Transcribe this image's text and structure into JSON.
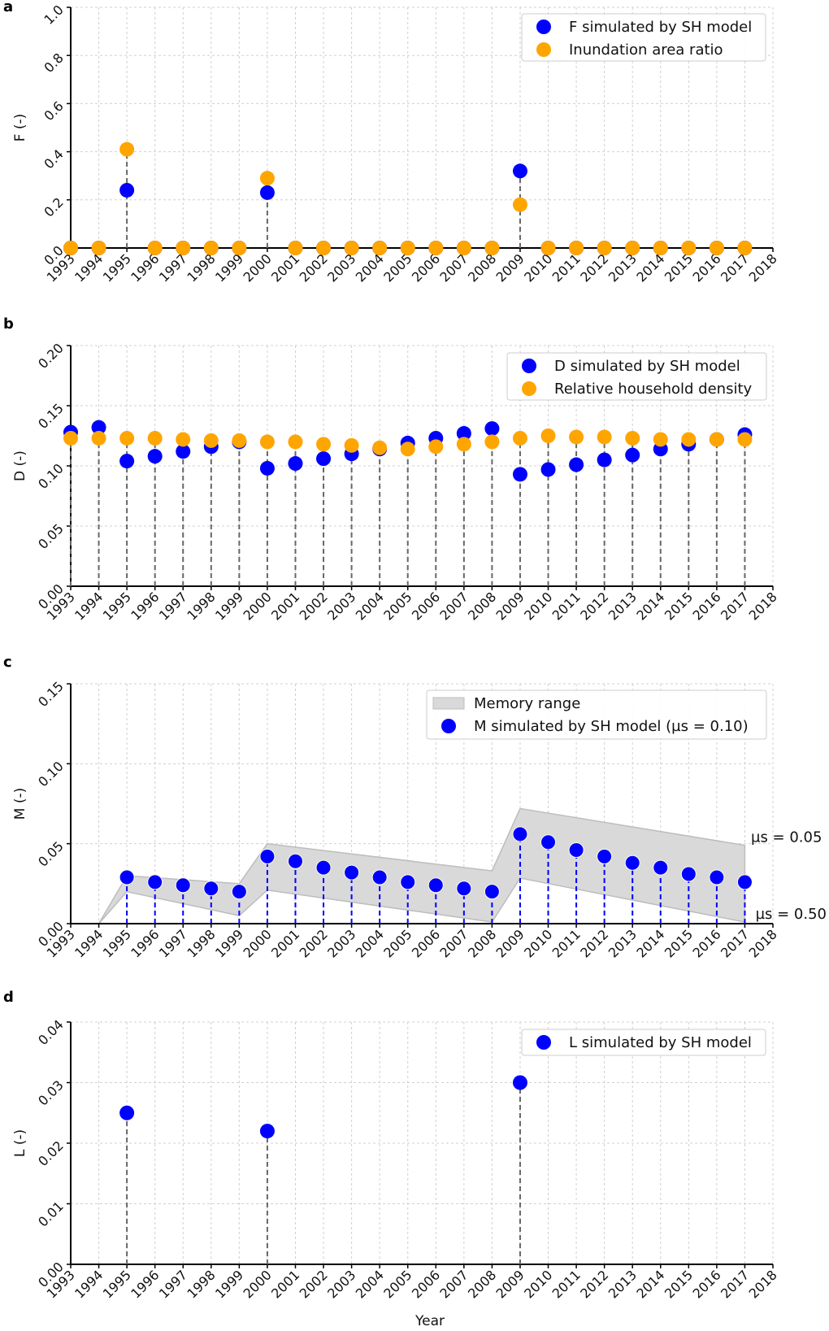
{
  "chart_data": [
    {
      "panel": "a",
      "type": "scatter",
      "ylabel": "F (-)",
      "xlabel": "",
      "ylim": [
        0,
        1.0
      ],
      "yticks": [
        "0.0",
        "0.2",
        "0.4",
        "0.6",
        "0.8",
        "1.0"
      ],
      "ytick_values": [
        0,
        0.2,
        0.4,
        0.6,
        0.8,
        1.0
      ],
      "grid": true,
      "legend_placement": "top-right",
      "x": [
        1993,
        1994,
        1995,
        1996,
        1997,
        1998,
        1999,
        2000,
        2001,
        2002,
        2003,
        2004,
        2005,
        2006,
        2007,
        2008,
        2009,
        2010,
        2011,
        2012,
        2013,
        2014,
        2015,
        2016,
        2017
      ],
      "series": [
        {
          "name": "F simulated by SH model",
          "color": "#0000ff",
          "values": [
            0,
            0,
            0.24,
            0,
            0,
            0,
            0,
            0.23,
            0,
            0,
            0,
            0,
            0,
            0,
            0,
            0,
            0.32,
            0,
            0,
            0,
            0,
            0,
            0,
            0,
            0
          ]
        },
        {
          "name": "Inundation area ratio",
          "color": "#ffa500",
          "values": [
            0,
            0,
            0.41,
            0,
            0,
            0,
            0,
            0.29,
            0,
            0,
            0,
            0,
            0,
            0,
            0,
            0,
            0.18,
            0,
            0,
            0,
            0,
            0,
            0,
            0,
            0
          ]
        }
      ]
    },
    {
      "panel": "b",
      "type": "scatter",
      "ylabel": "D (-)",
      "xlabel": "",
      "ylim": [
        0,
        0.2
      ],
      "yticks": [
        "0.00",
        "0.05",
        "0.10",
        "0.15",
        "0.20"
      ],
      "ytick_values": [
        0,
        0.05,
        0.1,
        0.15,
        0.2
      ],
      "grid": true,
      "legend_placement": "top-right",
      "x": [
        1993,
        1994,
        1995,
        1996,
        1997,
        1998,
        1999,
        2000,
        2001,
        2002,
        2003,
        2004,
        2005,
        2006,
        2007,
        2008,
        2009,
        2010,
        2011,
        2012,
        2013,
        2014,
        2015,
        2016,
        2017
      ],
      "series": [
        {
          "name": "D simulated by SH model",
          "color": "#0000ff",
          "values": [
            0.128,
            0.132,
            0.104,
            0.108,
            0.112,
            0.116,
            0.12,
            0.098,
            0.102,
            0.106,
            0.11,
            0.114,
            0.119,
            0.123,
            0.127,
            0.131,
            0.093,
            0.097,
            0.101,
            0.105,
            0.109,
            0.114,
            0.118,
            0.122,
            0.126
          ]
        },
        {
          "name": "Relative household density",
          "color": "#ffa500",
          "values": [
            0.123,
            0.123,
            0.123,
            0.123,
            0.122,
            0.121,
            0.121,
            0.12,
            0.12,
            0.118,
            0.117,
            0.115,
            0.114,
            0.116,
            0.118,
            0.12,
            0.123,
            0.125,
            0.124,
            0.124,
            0.123,
            0.122,
            0.122,
            0.122,
            0.122
          ]
        }
      ]
    },
    {
      "panel": "c",
      "type": "scatter",
      "ylabel": "M (-)",
      "xlabel": "",
      "ylim": [
        0,
        0.15
      ],
      "yticks": [
        "0.00",
        "0.05",
        "0.10",
        "0.15"
      ],
      "ytick_values": [
        0,
        0.05,
        0.1,
        0.15
      ],
      "grid": true,
      "legend_placement": "top-right",
      "x": [
        1995,
        1996,
        1997,
        1998,
        1999,
        2000,
        2001,
        2002,
        2003,
        2004,
        2005,
        2006,
        2007,
        2008,
        2009,
        2010,
        2011,
        2012,
        2013,
        2014,
        2015,
        2016,
        2017
      ],
      "series": [
        {
          "name": "M simulated by SH model (µs = 0.10)",
          "color": "#0000ff",
          "values": [
            0.029,
            0.026,
            0.024,
            0.022,
            0.02,
            0.042,
            0.039,
            0.035,
            0.032,
            0.029,
            0.026,
            0.024,
            0.022,
            0.02,
            0.056,
            0.051,
            0.046,
            0.042,
            0.038,
            0.035,
            0.031,
            0.029,
            0.026
          ]
        }
      ],
      "band": {
        "name": "Memory range",
        "color": "#d9d9d9",
        "x": [
          1994,
          1995,
          1999,
          2000,
          2008,
          2009,
          2017
        ],
        "upper": [
          0,
          0.03,
          0.025,
          0.05,
          0.033,
          0.072,
          0.049
        ],
        "lower": [
          0,
          0.02,
          0.005,
          0.021,
          0.001,
          0.0285,
          0.001
        ]
      },
      "annotations": [
        "µs = 0.05",
        "µs = 0.50"
      ]
    },
    {
      "panel": "d",
      "type": "scatter",
      "ylabel": "L (-)",
      "xlabel": "Year",
      "ylim": [
        0,
        0.04
      ],
      "yticks": [
        "0.00",
        "0.01",
        "0.02",
        "0.03",
        "0.04"
      ],
      "ytick_values": [
        0,
        0.01,
        0.02,
        0.03,
        0.04
      ],
      "grid": true,
      "legend_placement": "top-right",
      "x": [
        1995,
        2000,
        2009
      ],
      "series": [
        {
          "name": "L simulated by SH model",
          "color": "#0000ff",
          "values": [
            0.025,
            0.022,
            0.03
          ]
        }
      ]
    }
  ],
  "xtick_labels": [
    "1993",
    "1994",
    "1995",
    "1996",
    "1997",
    "1998",
    "1999",
    "2000",
    "2001",
    "2002",
    "2003",
    "2004",
    "2005",
    "2006",
    "2007",
    "2008",
    "2009",
    "2010",
    "2011",
    "2012",
    "2013",
    "2014",
    "2015",
    "2016",
    "2017",
    "2018"
  ]
}
